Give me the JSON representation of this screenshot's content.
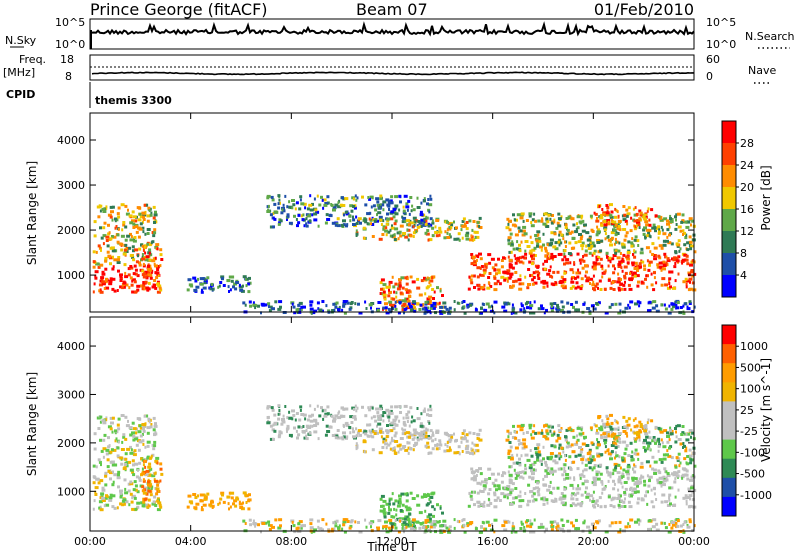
{
  "header": {
    "station": "Prince George (fitACF)",
    "beam": "Beam 07",
    "date": "01/Feb/2010"
  },
  "panels": {
    "nsky": {
      "label": "N.Sky",
      "right_label": "N.Search",
      "left_ticks": [
        "10^5",
        "10^0"
      ],
      "right_ticks": [
        "10^5",
        "10^0"
      ]
    },
    "freq": {
      "label_top": "Freq.",
      "label_unit": "[MHz]",
      "left_ticks": [
        "18",
        "8"
      ],
      "right_ticks": [
        "60",
        "0"
      ],
      "right_label": "Nave"
    },
    "cpid": {
      "label": "CPID",
      "value": "themis 3300"
    }
  },
  "colors": {
    "power_scale": [
      "#0000ff",
      "#1e4fa8",
      "#2f7a55",
      "#5fa848",
      "#f0c800",
      "#ff8c00",
      "#ff4000",
      "#ff0000"
    ],
    "velocity_scale": [
      "#ff0000",
      "#ff6000",
      "#ff9c00",
      "#f0b400",
      "#c0c0c0",
      "#c0c0c0",
      "#5ec84a",
      "#2e8a55",
      "#1e4fa8",
      "#0000ff"
    ]
  },
  "chart_data": [
    {
      "type": "heatmap",
      "name": "Power",
      "xlabel": "",
      "ylabel": "Slant Range [km]",
      "x_range_hours": [
        0,
        24
      ],
      "ylim": [
        180,
        4600
      ],
      "y_ticks": [
        1000,
        2000,
        3000,
        4000
      ],
      "colorbar": {
        "label": "Power [dB]",
        "ticks": [
          "28",
          "24",
          "20",
          "16",
          "12",
          "8",
          "4"
        ],
        "range": [
          0,
          32
        ]
      }
    },
    {
      "type": "heatmap",
      "name": "Velocity",
      "xlabel": "Time UT",
      "ylabel": "Slant Range [km]",
      "x_range_hours": [
        0,
        24
      ],
      "ylim": [
        180,
        4600
      ],
      "y_ticks": [
        1000,
        2000,
        3000,
        4000
      ],
      "x_ticks": [
        "00:00",
        "04:00",
        "08:00",
        "12:00",
        "16:00",
        "20:00",
        "00:00"
      ],
      "colorbar": {
        "label": "Velocity [m s^-1]",
        "ticks": [
          "1000",
          "500",
          "100",
          "25",
          "-25",
          "-100",
          "-500",
          "-1000"
        ]
      }
    }
  ]
}
